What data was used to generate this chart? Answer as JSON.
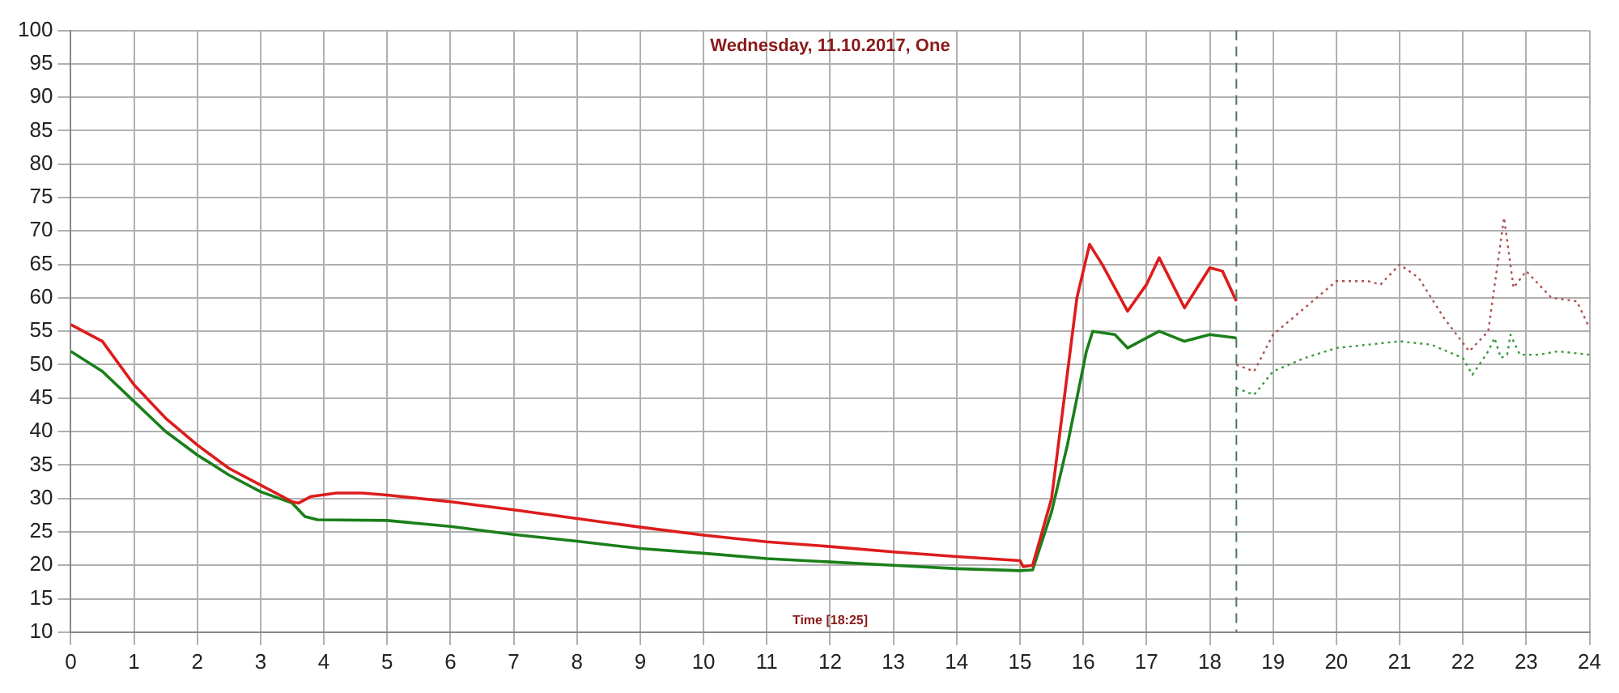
{
  "chart_data": {
    "type": "line",
    "title": "Wednesday, 11.10.2017, One",
    "xlabel": "Time [18:25]",
    "xlim": [
      0,
      24
    ],
    "xticks": [
      0,
      1,
      2,
      3,
      4,
      5,
      6,
      7,
      8,
      9,
      10,
      11,
      12,
      13,
      14,
      15,
      16,
      17,
      18,
      19,
      20,
      21,
      22,
      23,
      24
    ],
    "ylim": [
      10,
      100
    ],
    "yticks": [
      10,
      15,
      20,
      25,
      30,
      35,
      40,
      45,
      50,
      55,
      60,
      65,
      70,
      75,
      80,
      85,
      90,
      95,
      100
    ],
    "grid": true,
    "legend": false,
    "marker": "none",
    "series": [
      {
        "color": "#dd1c1c",
        "line_style": "solid",
        "x": [
          0,
          0.5,
          1,
          1.5,
          2,
          2.5,
          3,
          3.5,
          3.6,
          3.8,
          4.2,
          4.6,
          5,
          6,
          7,
          8,
          9,
          10,
          11,
          12,
          13,
          14,
          15,
          15.05,
          15.2,
          15.5,
          15.9,
          16.1,
          16.3,
          16.7,
          17,
          17.2,
          17.6,
          18,
          18.2,
          18.42
        ],
        "values": [
          56,
          53.5,
          47,
          42,
          38,
          34.5,
          32,
          29.5,
          29.3,
          30.3,
          30.8,
          30.8,
          30.5,
          29.5,
          28.3,
          27,
          25.7,
          24.5,
          23.5,
          22.8,
          22,
          21.3,
          20.7,
          19.8,
          20,
          30,
          60,
          68,
          65,
          58,
          62,
          66,
          58.5,
          64.5,
          64,
          59.5
        ]
      },
      {
        "color": "#1a7f1a",
        "line_style": "solid",
        "x": [
          0,
          0.5,
          1,
          1.5,
          2,
          2.5,
          3,
          3.5,
          3.7,
          3.9,
          5,
          6,
          7,
          8,
          9,
          10,
          11,
          12,
          13,
          14,
          15,
          15.2,
          15.5,
          15.75,
          16.05,
          16.15,
          16.5,
          16.7,
          17,
          17.2,
          17.6,
          18,
          18.42
        ],
        "values": [
          52,
          49,
          44.5,
          40,
          36.5,
          33.5,
          31,
          29.3,
          27.3,
          26.8,
          26.7,
          25.8,
          24.6,
          23.6,
          22.5,
          21.8,
          21,
          20.5,
          20,
          19.5,
          19.2,
          19.3,
          28,
          38,
          52,
          55,
          54.5,
          52.5,
          54,
          55,
          53.5,
          54.5,
          54
        ]
      },
      {
        "color": "#b05050",
        "line_style": "dotted",
        "x": [
          18.42,
          18.7,
          19,
          19.5,
          20,
          20.5,
          20.7,
          21,
          21.3,
          21.7,
          22.1,
          22.4,
          22.65,
          22.8,
          23,
          23.4,
          23.8,
          24
        ],
        "values": [
          50,
          49,
          54.5,
          58.5,
          62.5,
          62.5,
          62,
          65,
          63,
          57,
          52,
          55,
          72,
          61.5,
          64,
          60,
          59.5,
          55.5
        ]
      },
      {
        "color": "#3a9a3a",
        "line_style": "dotted",
        "x": [
          18.42,
          18.7,
          19,
          19.5,
          20,
          20.5,
          21,
          21.5,
          22,
          22.15,
          22.4,
          22.5,
          22.6,
          22.7,
          22.75,
          22.9,
          23.2,
          23.5,
          24
        ],
        "values": [
          46.5,
          45.5,
          49,
          51,
          52.5,
          53,
          53.5,
          53,
          51,
          48.5,
          52,
          54,
          51,
          51.5,
          54.5,
          51.5,
          51.5,
          52,
          51.5
        ]
      }
    ],
    "ref_lines": [
      {
        "axis": "x",
        "value": 18.42,
        "color": "#4a7a5a",
        "line_style": "dashed"
      }
    ]
  }
}
